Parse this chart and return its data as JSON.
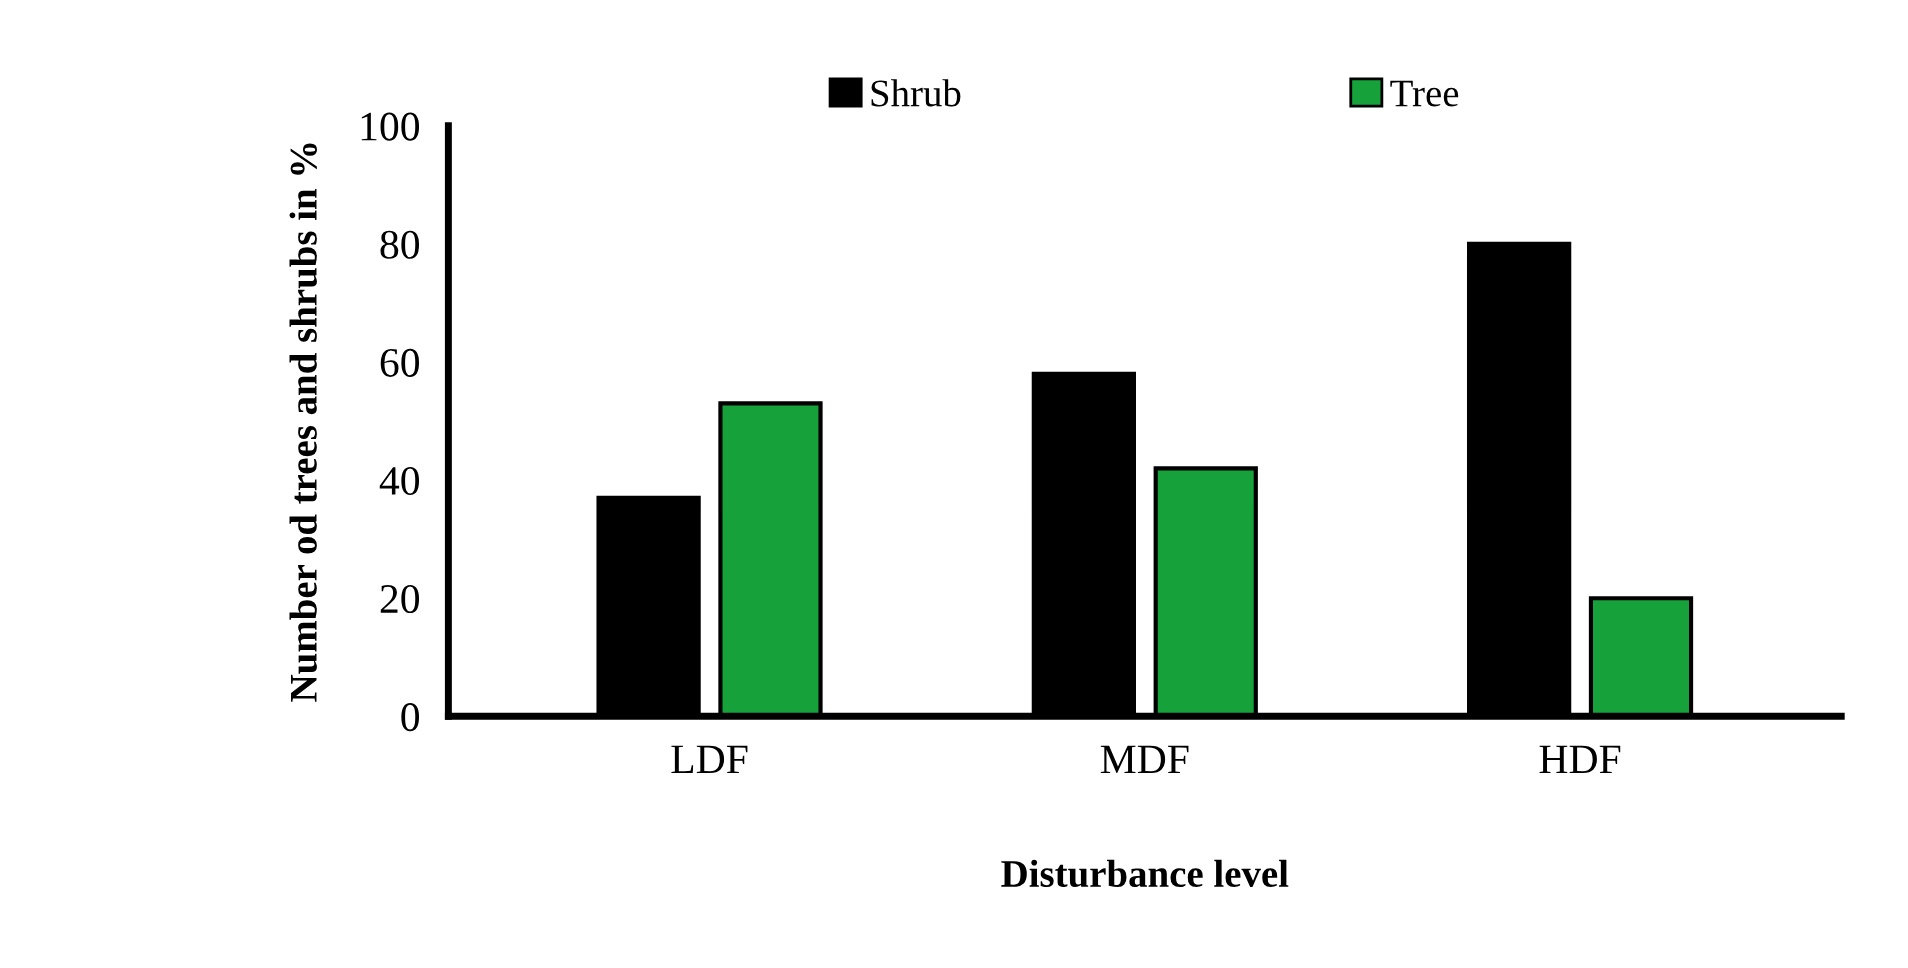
{
  "chart_data": {
    "type": "bar",
    "xlabel": "Disturbance level",
    "ylabel": "Number od trees and shrubs in %",
    "categories": [
      "LDF",
      "MDF",
      "HDF"
    ],
    "series": [
      {
        "name": "Shrub",
        "color": "#000000",
        "values": [
          37,
          58,
          80
        ]
      },
      {
        "name": "Tree",
        "color": "#16a13a",
        "values": [
          53,
          42,
          20
        ]
      }
    ],
    "ylim": [
      0,
      100
    ],
    "yticks": [
      0,
      20,
      40,
      60,
      80,
      100
    ],
    "grid": false,
    "legend": "top"
  }
}
